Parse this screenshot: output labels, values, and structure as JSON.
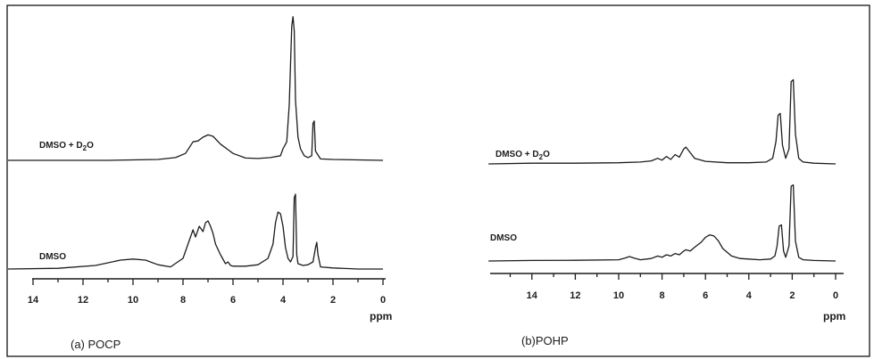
{
  "figure": {
    "panels": [
      {
        "caption": "(a) POCP",
        "unit": "ppm"
      },
      {
        "caption": "(b)POHP",
        "unit": "ppm"
      }
    ]
  },
  "chart_data": [
    {
      "type": "line",
      "title": "(a) POCP",
      "xlabel": "ppm",
      "x_reversed": true,
      "xlim": [
        15,
        0
      ],
      "xticks": [
        14,
        12,
        10,
        8,
        6,
        4,
        2,
        0
      ],
      "grid": false,
      "series": [
        {
          "name": "DMSO + D2O",
          "x": [
            15.0,
            13.0,
            11.0,
            9.0,
            8.3,
            7.9,
            7.6,
            7.4,
            7.2,
            7.0,
            6.8,
            6.5,
            6.0,
            5.5,
            5.0,
            4.5,
            4.1,
            4.0,
            3.85,
            3.75,
            3.65,
            3.6,
            3.55,
            3.5,
            3.4,
            3.3,
            3.15,
            3.0,
            2.85,
            2.8,
            2.75,
            2.7,
            2.5,
            2.0,
            1.0,
            0.0
          ],
          "y": [
            0.0,
            0.0,
            0.0,
            0.02,
            0.06,
            0.15,
            0.4,
            0.42,
            0.5,
            0.55,
            0.52,
            0.35,
            0.15,
            0.05,
            0.04,
            0.06,
            0.1,
            0.25,
            0.4,
            1.2,
            2.9,
            3.1,
            2.8,
            1.3,
            0.5,
            0.25,
            0.1,
            0.06,
            0.1,
            0.8,
            0.85,
            0.2,
            0.03,
            0.02,
            0.01,
            0.0
          ]
        },
        {
          "name": "DMSO",
          "x": [
            15.0,
            13.0,
            11.5,
            10.5,
            10.0,
            9.5,
            9.0,
            8.5,
            8.0,
            7.8,
            7.6,
            7.5,
            7.35,
            7.2,
            7.1,
            7.0,
            6.9,
            6.8,
            6.7,
            6.5,
            6.3,
            6.2,
            6.1,
            6.0,
            5.5,
            5.0,
            4.6,
            4.4,
            4.3,
            4.2,
            4.1,
            4.0,
            3.9,
            3.8,
            3.7,
            3.6,
            3.55,
            3.5,
            3.45,
            3.4,
            3.2,
            3.0,
            2.8,
            2.7,
            2.65,
            2.6,
            2.5,
            2.0,
            1.0,
            0.0
          ],
          "y": [
            0.0,
            0.02,
            0.1,
            0.25,
            0.28,
            0.25,
            0.12,
            0.06,
            0.3,
            0.7,
            1.1,
            0.9,
            1.2,
            1.05,
            1.3,
            1.35,
            1.2,
            1.0,
            0.7,
            0.4,
            0.15,
            0.2,
            0.1,
            0.08,
            0.08,
            0.12,
            0.3,
            0.7,
            1.3,
            1.6,
            1.55,
            1.2,
            0.6,
            0.3,
            0.2,
            0.35,
            2.0,
            2.1,
            0.4,
            0.15,
            0.1,
            0.12,
            0.2,
            0.6,
            0.75,
            0.4,
            0.06,
            0.03,
            0.0,
            0.0
          ]
        }
      ]
    },
    {
      "type": "line",
      "title": "(b)POHP",
      "xlabel": "ppm",
      "x_reversed": true,
      "xlim": [
        16,
        0
      ],
      "xticks": [
        14,
        12,
        10,
        8,
        6,
        4,
        2,
        0
      ],
      "grid": false,
      "series": [
        {
          "name": "DMSO + D2O",
          "x": [
            16.0,
            14.0,
            12.0,
            10.0,
            9.0,
            8.5,
            8.2,
            8.0,
            7.8,
            7.6,
            7.4,
            7.2,
            7.0,
            6.9,
            6.7,
            6.5,
            6.0,
            5.0,
            4.0,
            3.2,
            2.9,
            2.75,
            2.65,
            2.55,
            2.45,
            2.3,
            2.15,
            2.05,
            1.95,
            1.85,
            1.7,
            1.5,
            1.0,
            0.0
          ],
          "y": [
            0.0,
            0.02,
            0.02,
            0.03,
            0.05,
            0.08,
            0.15,
            0.1,
            0.2,
            0.12,
            0.25,
            0.18,
            0.4,
            0.45,
            0.3,
            0.15,
            0.07,
            0.03,
            0.03,
            0.05,
            0.15,
            0.6,
            1.3,
            1.35,
            0.5,
            0.15,
            0.4,
            2.2,
            2.25,
            0.8,
            0.15,
            0.05,
            0.02,
            0.0
          ]
        },
        {
          "name": "DMSO",
          "x": [
            16.0,
            14.0,
            12.0,
            10.0,
            9.7,
            9.5,
            9.3,
            9.0,
            8.5,
            8.2,
            8.0,
            7.8,
            7.6,
            7.4,
            7.2,
            7.0,
            6.9,
            6.7,
            6.5,
            6.2,
            6.0,
            5.8,
            5.6,
            5.4,
            5.2,
            4.8,
            4.4,
            4.0,
            3.5,
            3.0,
            2.8,
            2.7,
            2.6,
            2.5,
            2.4,
            2.3,
            2.15,
            2.05,
            1.95,
            1.85,
            1.7,
            1.5,
            1.0,
            0.0
          ],
          "y": [
            0.0,
            0.02,
            0.03,
            0.05,
            0.12,
            0.18,
            0.12,
            0.05,
            0.1,
            0.2,
            0.15,
            0.25,
            0.2,
            0.3,
            0.25,
            0.4,
            0.45,
            0.4,
            0.55,
            0.75,
            0.95,
            1.05,
            1.0,
            0.8,
            0.5,
            0.2,
            0.1,
            0.08,
            0.05,
            0.08,
            0.2,
            0.6,
            1.4,
            1.45,
            0.4,
            0.15,
            0.6,
            3.0,
            3.05,
            0.8,
            0.15,
            0.05,
            0.02,
            0.0
          ]
        }
      ]
    }
  ]
}
